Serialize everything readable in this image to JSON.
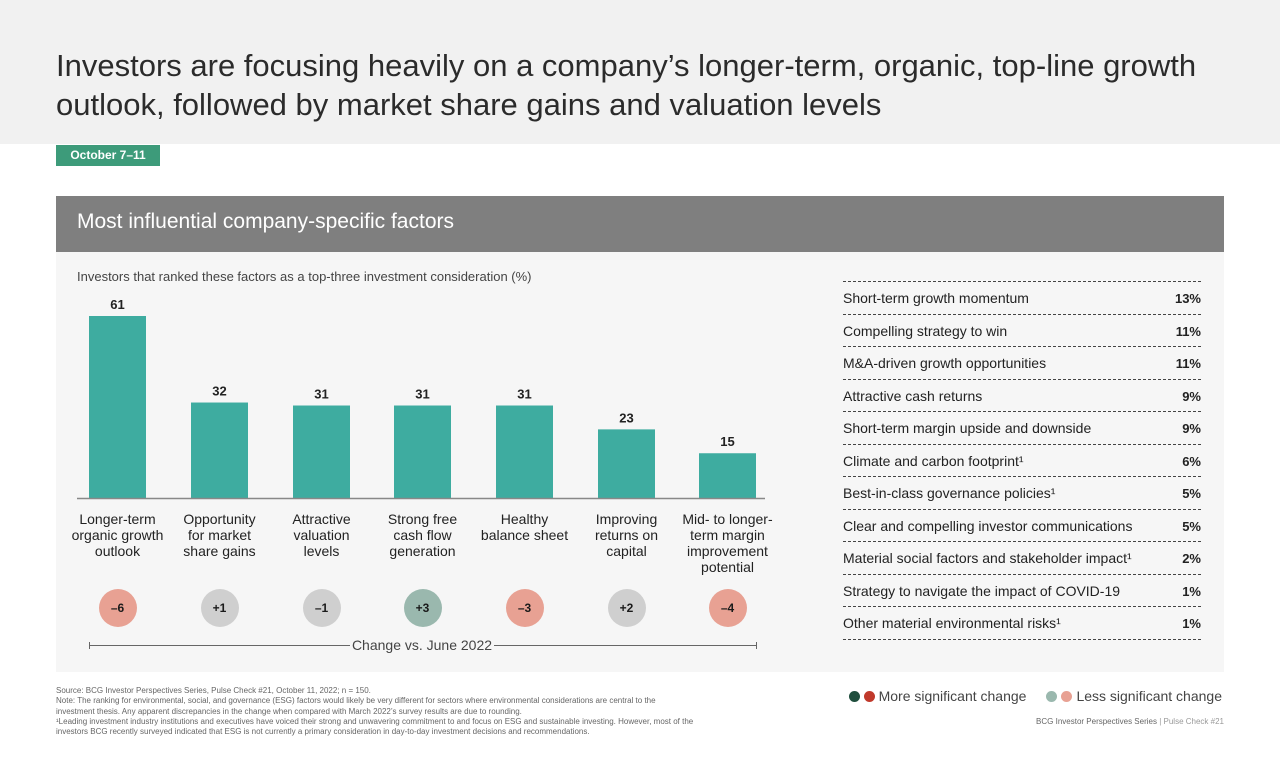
{
  "title": "Investors are focusing heavily on a company’s longer-term, organic, top-line growth outlook, followed by market share gains and valuation levels",
  "date_tag": "October 7–11",
  "panel_title": "Most influential company-specific factors",
  "colors": {
    "bar": "#3eaca0",
    "more_sig_dark_green": "#1f4e3d",
    "more_sig_red": "#c0392b",
    "less_sig_green": "#9ab8ae",
    "less_sig_red": "#e8a193",
    "neutral": "#cfcfcf"
  },
  "chart_data": {
    "type": "bar",
    "title": "Investors that ranked these factors as a top-three investment consideration (%)",
    "categories": [
      "Longer-term organic growth outlook",
      "Opportunity for market share gains",
      "Attractive valuation levels",
      "Strong free cash flow generation",
      "Healthy balance sheet",
      "Improving returns on capital",
      "Mid- to longer-term margin improvement potential"
    ],
    "category_labels": [
      "Longer-term\norganic growth\noutlook",
      "Opportunity\nfor market\nshare gains",
      "Attractive\nvaluation\nlevels",
      "Strong free\ncash flow\ngeneration",
      "Healthy\nbalance sheet",
      "Improving\nreturns on\ncapital",
      "Mid- to longer-\nterm margin\nimprovement\npotential"
    ],
    "values": [
      61,
      32,
      31,
      31,
      31,
      23,
      15
    ],
    "ylim": [
      0,
      61
    ],
    "change_label": "Change vs. June 2022",
    "changes": [
      {
        "text": "–6",
        "value": -6,
        "significance": "less"
      },
      {
        "text": "+1",
        "value": 1,
        "significance": "none"
      },
      {
        "text": "–1",
        "value": -1,
        "significance": "none"
      },
      {
        "text": "+3",
        "value": 3,
        "significance": "less"
      },
      {
        "text": "–3",
        "value": -3,
        "significance": "less"
      },
      {
        "text": "+2",
        "value": 2,
        "significance": "none"
      },
      {
        "text": "–4",
        "value": -4,
        "significance": "less"
      }
    ]
  },
  "other_factors": [
    {
      "name": "Short-term growth momentum",
      "value": "13%"
    },
    {
      "name": "Compelling strategy to win",
      "value": "11%"
    },
    {
      "name": "M&A-driven growth opportunities",
      "value": "11%"
    },
    {
      "name": "Attractive cash returns",
      "value": "9%"
    },
    {
      "name": "Short-term margin upside and downside",
      "value": "9%"
    },
    {
      "name": "Climate and carbon footprint¹",
      "value": "6%"
    },
    {
      "name": "Best-in-class governance policies¹",
      "value": "5%"
    },
    {
      "name": "Clear and compelling investor communications",
      "value": "5%"
    },
    {
      "name": "Material social factors and stakeholder impact¹",
      "value": "2%"
    },
    {
      "name": "Strategy to navigate the impact of COVID-19",
      "value": "1%"
    },
    {
      "name": "Other material environmental risks¹",
      "value": "1%"
    }
  ],
  "legend": {
    "more": "More significant change",
    "less": "Less significant change"
  },
  "footnotes": {
    "source": "Source: BCG Investor Perspectives Series, Pulse Check #21, October 11, 2022; n = 150.",
    "note": "Note: The ranking for environmental, social, and governance (ESG) factors would likely be very different for sectors where environmental considerations are central to the investment thesis. Any apparent discrepancies in the change when compared with March 2022’s survey results are due to rounding.",
    "esg": "¹Leading investment industry institutions and executives have voiced their strong and unwavering commitment to and focus on ESG and sustainable investing. However, most of the investors BCG recently surveyed indicated that ESG is not currently a primary consideration in day-to-day investment decisions and recommendations."
  },
  "page_ref": {
    "series": "BCG Investor Perspectives Series",
    "separator": " | ",
    "check": "Pulse Check #21"
  }
}
